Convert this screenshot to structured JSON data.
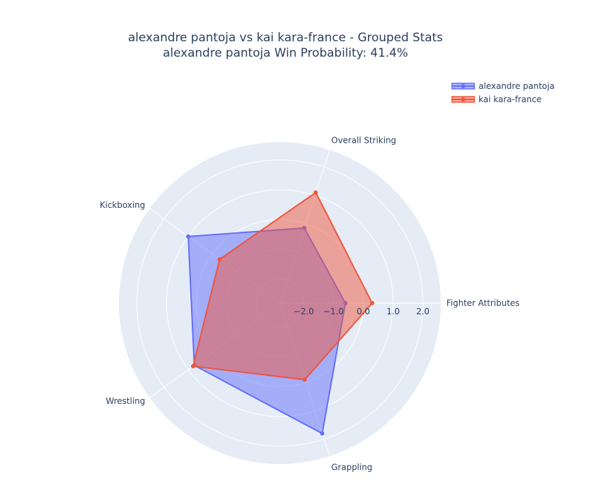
{
  "chart_data": {
    "type": "radar",
    "title_line1": "alexandre pantoja vs kai kara-france - Grouped Stats",
    "title_line2": "alexandre pantoja Win Probability: 41.4%",
    "categories": [
      "Fighter Attributes",
      "Overall Striking",
      "Kickboxing",
      "Wrestling",
      "Grappling"
    ],
    "radial_range": [
      -2.8,
      2.6
    ],
    "radial_ticks": [
      -2.0,
      -1.0,
      0.0,
      1.0,
      2.0
    ],
    "radial_tick_labels": [
      "−2.0",
      "−1.0",
      "0.0",
      "1.0",
      "2.0"
    ],
    "series": [
      {
        "name": "alexandre pantoja",
        "color": "#636efa",
        "fill": "rgba(99,110,250,0.5)",
        "values": [
          -0.6,
          -0.15,
          1.0,
          0.75,
          1.8
        ]
      },
      {
        "name": "kai kara-france",
        "color": "#ef553b",
        "fill": "rgba(239,85,59,0.5)",
        "values": [
          0.3,
          1.1,
          -0.3,
          0.8,
          -0.1
        ]
      }
    ],
    "legend_position": "top-right",
    "grid": true,
    "background_color": "#e5ecf6"
  }
}
